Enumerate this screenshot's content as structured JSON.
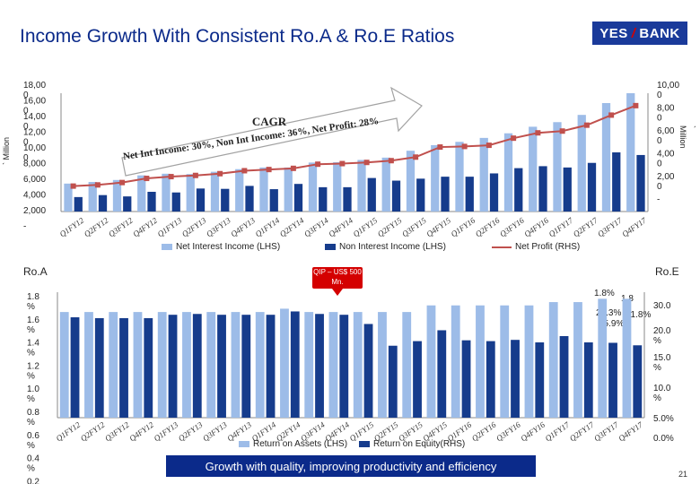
{
  "header": {
    "title": "Income Growth With Consistent Ro.A & Ro.E Ratios",
    "logo_left": "YES",
    "logo_right": "BANK"
  },
  "top_chart": {
    "left_unit": "` Million",
    "right_unit": "` Million",
    "left_ticks": [
      "18,00\n0",
      "16,00\n0",
      "14,00\n0",
      "12,00\n0",
      "10,00\n0",
      "8,000",
      "6,000",
      "4,000",
      "2,000",
      "-"
    ],
    "right_ticks": [
      "10,00\n0",
      "8,00\n0",
      "6,00\n0",
      "4,00\n0",
      "2,00\n0",
      "-"
    ],
    "arrow_text_1": "CAGR",
    "arrow_text_2": "Net Int Income: 30%,  Non Int Income: 36%,  Net Profit: 28%",
    "legend": [
      "Net Interest Income (LHS)",
      "Non Interest Income (LHS)",
      "Net Profit (RHS)"
    ]
  },
  "bottom_chart": {
    "left_title": "Ro.A",
    "right_title": "Ro.E",
    "left_ticks": [
      "1.8\n%",
      "1.6\n%",
      "1.4\n%",
      "1.2\n%",
      "1.0\n%",
      "0.8\n%",
      "0.6\n%",
      "0.4\n%",
      "0.2"
    ],
    "right_ticks": [
      "30.0",
      "20.0\n%",
      "15.0\n%",
      "10.0\n%",
      "5.0%",
      "0.0%"
    ],
    "anno_roa_1": "1.8%",
    "anno_roa_2": "1.8",
    "anno_roe_1": "22.3%",
    "anno_roe_2": "21.8%",
    "anno_roe_3": "25.9%",
    "legend": [
      "Return on Assets (LHS)",
      "Return on Equity(RHS)"
    ]
  },
  "callout": "QIP – US$ 500 Mn.",
  "footer": "Growth with quality, improving productivity and efficiency",
  "page_number": "21",
  "colors": {
    "light_bar": "#9dbce8",
    "dark_bar": "#163c8c",
    "line": "#c0504d",
    "navy": "#0b2a8a"
  },
  "chart_data": [
    {
      "type": "bar",
      "categories": [
        "Q1FY12",
        "Q2FY12",
        "Q3FY12",
        "Q4FY12",
        "Q1FY13",
        "Q2FY13",
        "Q3FY13",
        "Q4FY13",
        "Q1FY14",
        "Q2FY14",
        "Q3FY14",
        "Q4FY14",
        "Q1FY15",
        "Q2FY15",
        "Q3FY15",
        "Q4FY15",
        "Q1FY16",
        "Q2FY16",
        "Q3FY16",
        "Q4FY16",
        "Q1FY17",
        "Q2FY17",
        "Q3FY17",
        "Q4FY17"
      ],
      "tick_labels": [
        "Q1FY12",
        "Q2FY12",
        "Q3FY12",
        "Q4FY12",
        "Q1FY13",
        "Q2FY13",
        "Q3FY13",
        "Q4FY13",
        "Q1FY14",
        "Q2FY14",
        "Q3FY14",
        "Q4FY14",
        "Q1FY15",
        "Q2FY15",
        "Q3FY15",
        "Q4FY15",
        "Q1FY16",
        "Q2FY16",
        "Q3FY16",
        "Q4FY16",
        "Q1FY17",
        "Q2FY17",
        "Q3FY17",
        "Q4FY17"
      ],
      "series": [
        {
          "name": "Net Interest Income (LHS)",
          "axis": "left",
          "values": [
            4250,
            4500,
            4800,
            5500,
            5750,
            5700,
            6050,
            6450,
            6700,
            6700,
            7450,
            7500,
            7850,
            8200,
            9250,
            10100,
            10600,
            11200,
            11900,
            12900,
            13600,
            14700,
            16500,
            18000
          ]
        },
        {
          "name": "Non Interest Income (LHS)",
          "axis": "left",
          "values": [
            2200,
            2500,
            2300,
            3000,
            2900,
            3500,
            3450,
            3900,
            3400,
            4200,
            3700,
            3700,
            5100,
            4700,
            5000,
            5300,
            5300,
            5800,
            6600,
            6900,
            6700,
            7400,
            9000,
            8600
          ]
        },
        {
          "name": "Net Profit (RHS)",
          "axis": "right",
          "type": "line",
          "values": [
            2150,
            2250,
            2450,
            2800,
            2950,
            3050,
            3200,
            3450,
            3550,
            3650,
            4000,
            4050,
            4150,
            4300,
            4600,
            5450,
            5500,
            5600,
            6200,
            6650,
            6800,
            7300,
            8150,
            8950
          ]
        }
      ],
      "ylim_left": [
        0,
        18000
      ],
      "ylim_right": [
        0,
        10000
      ]
    },
    {
      "type": "bar",
      "categories": [
        "Q1FY12",
        "Q2FY12",
        "Q3FY12",
        "Q4FY12",
        "Q1FY13",
        "Q2FY13",
        "Q3FY13",
        "Q4FY13",
        "Q1FY14",
        "Q2FY14",
        "Q3FY14",
        "Q4FY14",
        "Q1FY15",
        "Q2FY15",
        "Q3FY15",
        "Q4FY15",
        "Q1FY16",
        "Q2FY16",
        "Q3FY16",
        "Q4FY16",
        "Q1FY17",
        "Q2FY17",
        "Q3FY17",
        "Q4FY17"
      ],
      "tick_labels": [
        "Q1FY12",
        "Q2FY12",
        "Q3FY12",
        "Q4FY12",
        "Q1FY13",
        "Q2FY13",
        "Q3FY13",
        "Q4FY13",
        "Q1FY14",
        "Q2FY14",
        "Q3FY14",
        "Q4FY14",
        "Q1FY15",
        "Q2FY15",
        "Q3FY15",
        "Q4FY15",
        "Q1FY16",
        "Q2FY16",
        "Q3FY16",
        "Q4FY16",
        "Q1FY17",
        "Q2FY17",
        "Q3FY17",
        "Q4FY17"
      ],
      "series": [
        {
          "name": "Return on Assets (LHS)",
          "axis": "left",
          "values": [
            1.6,
            1.6,
            1.6,
            1.6,
            1.6,
            1.6,
            1.6,
            1.6,
            1.6,
            1.65,
            1.6,
            1.6,
            1.6,
            1.6,
            1.6,
            1.7,
            1.7,
            1.7,
            1.7,
            1.7,
            1.75,
            1.75,
            1.8,
            1.8
          ]
        },
        {
          "name": "Return on Equity(RHS)",
          "axis": "right",
          "values": [
            24,
            23.8,
            23.8,
            23.8,
            24.6,
            24.8,
            24.6,
            24.6,
            24.6,
            25.4,
            24.8,
            24.6,
            22.4,
            17.2,
            18.3,
            20.9,
            18.5,
            18.3,
            18.6,
            18.0,
            19.5,
            18.0,
            17.9,
            17.3
          ]
        }
      ],
      "ylim_left": [
        0,
        1.9
      ],
      "ylim_right": [
        0,
        30
      ]
    }
  ]
}
